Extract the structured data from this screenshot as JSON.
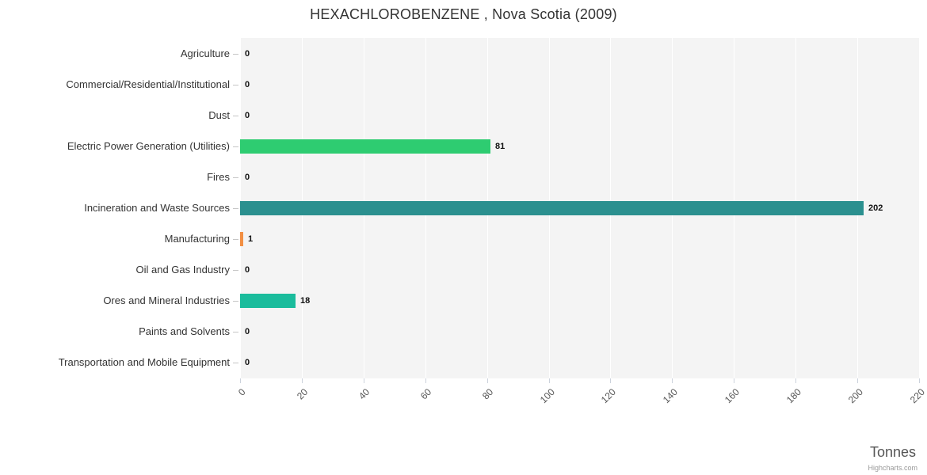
{
  "chart": {
    "credit": "Highcharts.com"
  },
  "chart_data": {
    "type": "bar",
    "orientation": "horizontal",
    "title": "HEXACHLOROBENZENE , Nova Scotia (2009)",
    "categories": [
      "Agriculture",
      "Commercial/Residential/Institutional",
      "Dust",
      "Electric Power Generation (Utilities)",
      "Fires",
      "Incineration and Waste Sources",
      "Manufacturing",
      "Oil and Gas Industry",
      "Ores and Mineral Industries",
      "Paints and Solvents",
      "Transportation and Mobile Equipment"
    ],
    "values": [
      0,
      0,
      0,
      81,
      0,
      202,
      1,
      0,
      18,
      0,
      0
    ],
    "data_labels": [
      "0",
      "0",
      "0",
      "81",
      "0",
      "202",
      "1",
      "0",
      "18",
      "0",
      "0"
    ],
    "bar_colors": [
      null,
      null,
      null,
      "#2ecc71",
      null,
      "#2b908f",
      "#f28f43",
      null,
      "#1abc9c",
      null,
      null
    ],
    "xlabel": "Tonnes",
    "xticks": [
      0,
      20,
      40,
      60,
      80,
      100,
      120,
      140,
      160,
      180,
      200,
      220
    ],
    "xlim": [
      0,
      220
    ],
    "grid": true,
    "legend": "none",
    "plot_bg": "#f4f4f4",
    "gridline_color": "#ffffff"
  }
}
